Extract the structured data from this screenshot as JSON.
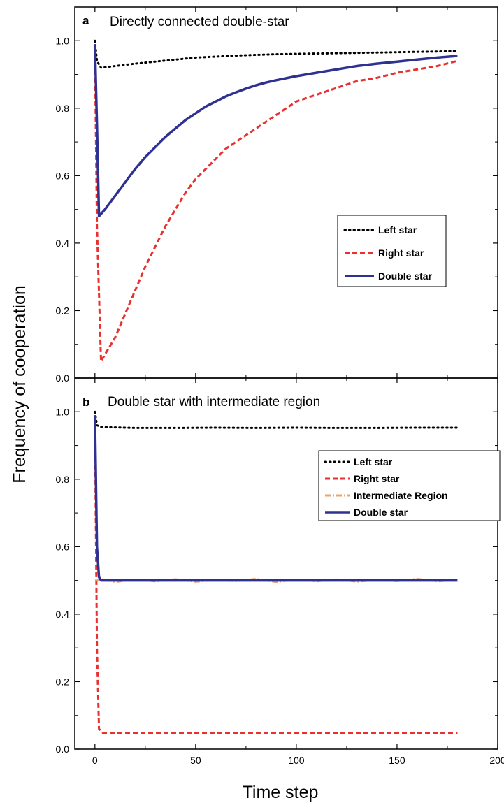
{
  "figure": {
    "ylabel": "Frequency of cooperation",
    "xlabel": "Time step",
    "xticks": [
      "0",
      "50",
      "100",
      "150",
      "200"
    ],
    "yticks": [
      "0.0",
      "0.2",
      "0.4",
      "0.6",
      "0.8",
      "1.0"
    ]
  },
  "chart_data": [
    {
      "type": "line",
      "panel": "a",
      "title": "Directly connected double-star",
      "xlabel": "Time step",
      "ylabel": "Frequency of cooperation",
      "xlim": [
        -10,
        200
      ],
      "ylim": [
        0,
        1.1
      ],
      "grid": false,
      "legend_position": "center-right",
      "series": [
        {
          "name": "Left star",
          "color": "#000000",
          "style": "dotted",
          "x": [
            0,
            1,
            3,
            10,
            20,
            30,
            40,
            50,
            60,
            70,
            80,
            90,
            100,
            110,
            120,
            130,
            140,
            150,
            160,
            170,
            180
          ],
          "y": [
            1.0,
            0.94,
            0.92,
            0.925,
            0.932,
            0.938,
            0.944,
            0.95,
            0.953,
            0.956,
            0.958,
            0.96,
            0.961,
            0.962,
            0.963,
            0.964,
            0.965,
            0.966,
            0.967,
            0.968,
            0.97
          ]
        },
        {
          "name": "Right star",
          "color": "#e8302e",
          "style": "dashed",
          "x": [
            0,
            1,
            3,
            5,
            10,
            15,
            20,
            25,
            30,
            35,
            40,
            45,
            50,
            55,
            60,
            65,
            70,
            75,
            80,
            85,
            90,
            95,
            100,
            105,
            110,
            120,
            130,
            140,
            150,
            160,
            170,
            180
          ],
          "y": [
            0.98,
            0.45,
            0.05,
            0.07,
            0.12,
            0.19,
            0.26,
            0.33,
            0.39,
            0.45,
            0.5,
            0.55,
            0.59,
            0.62,
            0.65,
            0.68,
            0.7,
            0.72,
            0.74,
            0.76,
            0.78,
            0.8,
            0.82,
            0.83,
            0.84,
            0.86,
            0.88,
            0.89,
            0.905,
            0.915,
            0.925,
            0.94
          ]
        },
        {
          "name": "Double star",
          "color": "#2e3192",
          "style": "solid",
          "x": [
            0,
            1,
            2,
            5,
            10,
            15,
            20,
            25,
            30,
            35,
            40,
            45,
            50,
            55,
            60,
            65,
            70,
            75,
            80,
            85,
            90,
            95,
            100,
            110,
            120,
            130,
            140,
            150,
            160,
            170,
            180
          ],
          "y": [
            0.99,
            0.75,
            0.48,
            0.5,
            0.54,
            0.58,
            0.62,
            0.655,
            0.685,
            0.715,
            0.74,
            0.765,
            0.785,
            0.805,
            0.82,
            0.835,
            0.847,
            0.858,
            0.868,
            0.876,
            0.883,
            0.889,
            0.895,
            0.905,
            0.915,
            0.925,
            0.932,
            0.938,
            0.944,
            0.95,
            0.955
          ]
        }
      ]
    },
    {
      "type": "line",
      "panel": "b",
      "title": "Double star with intermediate region",
      "xlabel": "Time step",
      "ylabel": "Frequency of cooperation",
      "xlim": [
        -10,
        200
      ],
      "ylim": [
        0,
        1.1
      ],
      "grid": false,
      "legend_position": "upper-right",
      "series": [
        {
          "name": "Left star",
          "color": "#000000",
          "style": "dotted",
          "x": [
            0,
            1,
            3,
            20,
            40,
            60,
            80,
            100,
            120,
            140,
            160,
            180
          ],
          "y": [
            1.0,
            0.96,
            0.955,
            0.952,
            0.952,
            0.953,
            0.952,
            0.953,
            0.952,
            0.952,
            0.953,
            0.953
          ]
        },
        {
          "name": "Right star",
          "color": "#e8302e",
          "style": "dashed",
          "x": [
            0,
            1,
            2,
            4,
            20,
            40,
            60,
            80,
            100,
            120,
            140,
            160,
            180
          ],
          "y": [
            0.98,
            0.3,
            0.06,
            0.048,
            0.048,
            0.047,
            0.048,
            0.048,
            0.047,
            0.048,
            0.047,
            0.048,
            0.048
          ]
        },
        {
          "name": "Intermediate Region",
          "color": "#f0a070",
          "style": "dashdot",
          "x": [
            0,
            1,
            3,
            10,
            20,
            30,
            40,
            50,
            60,
            70,
            80,
            90,
            100,
            110,
            120,
            130,
            140,
            150,
            160,
            170,
            180
          ],
          "y": [
            0.5,
            0.5,
            0.505,
            0.495,
            0.503,
            0.497,
            0.504,
            0.496,
            0.502,
            0.498,
            0.505,
            0.495,
            0.503,
            0.497,
            0.504,
            0.496,
            0.502,
            0.498,
            0.505,
            0.497,
            0.502
          ]
        },
        {
          "name": "Double star",
          "color": "#2e3192",
          "style": "solid",
          "x": [
            0,
            1,
            2,
            3,
            20,
            40,
            60,
            80,
            100,
            120,
            140,
            160,
            180
          ],
          "y": [
            0.99,
            0.6,
            0.51,
            0.5,
            0.5,
            0.5,
            0.5,
            0.5,
            0.5,
            0.5,
            0.5,
            0.5,
            0.5
          ]
        }
      ]
    }
  ]
}
